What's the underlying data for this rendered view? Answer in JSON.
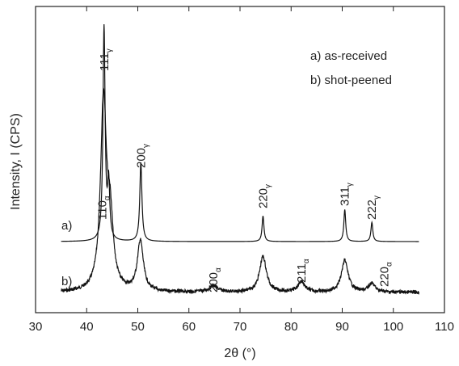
{
  "chart_data": {
    "type": "line",
    "xlabel": "2θ (°)",
    "ylabel": "Intensity, I (CPS)",
    "xlim": [
      30,
      110
    ],
    "x_ticks": [
      "30",
      "40",
      "50",
      "60",
      "70",
      "80",
      "90",
      "100",
      "110"
    ],
    "y_ticks_labeled": false,
    "grid": false,
    "legend": [
      "a) as-received",
      "b) shot-peened"
    ],
    "legend_position": "top-right",
    "series": [
      {
        "name": "a)",
        "x_range": [
          35,
          105
        ],
        "baseline": 0,
        "peaks": [
          {
            "x": 43.4,
            "height": 100,
            "width": 0.25
          },
          {
            "x": 44.3,
            "height": 26,
            "width": 0.25
          },
          {
            "x": 50.6,
            "height": 37,
            "width": 0.25
          },
          {
            "x": 74.5,
            "height": 12,
            "width": 0.22
          },
          {
            "x": 90.5,
            "height": 15,
            "width": 0.22
          },
          {
            "x": 95.8,
            "height": 9,
            "width": 0.22
          }
        ]
      },
      {
        "name": "b)",
        "x_range": [
          35,
          105
        ],
        "baseline": 0,
        "peaks": [
          {
            "x": 43.3,
            "height": 90,
            "width": 0.7
          },
          {
            "x": 44.6,
            "height": 30,
            "width": 0.7
          },
          {
            "x": 50.5,
            "height": 24,
            "width": 0.7
          },
          {
            "x": 64.8,
            "height": 3,
            "width": 1.0
          },
          {
            "x": 74.5,
            "height": 17,
            "width": 0.8
          },
          {
            "x": 82.0,
            "height": 5,
            "width": 0.8
          },
          {
            "x": 90.5,
            "height": 15,
            "width": 0.8
          },
          {
            "x": 95.8,
            "height": 4,
            "width": 0.8
          }
        ]
      }
    ],
    "annotations": [
      {
        "x": 43.4,
        "main": "111",
        "sub": "γ"
      },
      {
        "x": 44.3,
        "main": "110",
        "sub": "α"
      },
      {
        "x": 50.6,
        "main": "200",
        "sub": "γ"
      },
      {
        "x": 64.8,
        "main": "200",
        "sub": "α"
      },
      {
        "x": 74.5,
        "main": "220",
        "sub": "γ"
      },
      {
        "x": 82.0,
        "main": "211",
        "sub": "α"
      },
      {
        "x": 90.5,
        "main": "311",
        "sub": "γ"
      },
      {
        "x": 95.8,
        "main": "222",
        "sub": "γ"
      },
      {
        "x": 99.5,
        "main": "220",
        "sub": "α"
      }
    ]
  }
}
